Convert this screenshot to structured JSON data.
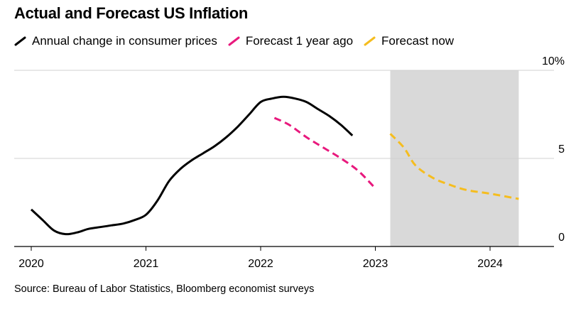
{
  "chart_data": {
    "type": "line",
    "title": "Actual and Forecast US Inflation",
    "source": "Source: Bureau of Labor Statistics, Bloomberg economist surveys",
    "ylim": [
      0,
      10
    ],
    "y_ticks": [
      {
        "value": 0,
        "label": "0"
      },
      {
        "value": 5,
        "label": "5"
      },
      {
        "value": 10,
        "label": "10%"
      }
    ],
    "xlim": [
      2020.0,
      2024.55
    ],
    "x_ticks": [
      {
        "value": 2020,
        "label": "2020"
      },
      {
        "value": 2021,
        "label": "2021"
      },
      {
        "value": 2022,
        "label": "2022"
      },
      {
        "value": 2023,
        "label": "2023"
      },
      {
        "value": 2024,
        "label": "2024"
      }
    ],
    "shaded_region": {
      "x_start": 2023.13,
      "x_end": 2024.25,
      "color": "#d9d9d9"
    },
    "grid": "horizontal",
    "legend_position": "top-left",
    "series": [
      {
        "name": "Annual change in consumer prices",
        "color": "#000000",
        "dash": false,
        "points": [
          [
            2020.0,
            2.1
          ],
          [
            2020.1,
            1.5
          ],
          [
            2020.2,
            0.9
          ],
          [
            2020.3,
            0.7
          ],
          [
            2020.4,
            0.8
          ],
          [
            2020.5,
            1.0
          ],
          [
            2020.6,
            1.1
          ],
          [
            2020.7,
            1.2
          ],
          [
            2020.8,
            1.3
          ],
          [
            2020.9,
            1.5
          ],
          [
            2021.0,
            1.8
          ],
          [
            2021.1,
            2.6
          ],
          [
            2021.2,
            3.7
          ],
          [
            2021.3,
            4.4
          ],
          [
            2021.4,
            4.9
          ],
          [
            2021.5,
            5.3
          ],
          [
            2021.6,
            5.7
          ],
          [
            2021.7,
            6.2
          ],
          [
            2021.8,
            6.8
          ],
          [
            2021.9,
            7.5
          ],
          [
            2022.0,
            8.2
          ],
          [
            2022.1,
            8.4
          ],
          [
            2022.2,
            8.5
          ],
          [
            2022.3,
            8.4
          ],
          [
            2022.4,
            8.2
          ],
          [
            2022.5,
            7.8
          ],
          [
            2022.6,
            7.4
          ],
          [
            2022.7,
            6.9
          ],
          [
            2022.8,
            6.3
          ]
        ]
      },
      {
        "name": "Forecast 1 year ago",
        "color": "#e8197d",
        "dash": true,
        "points": [
          [
            2022.12,
            7.3
          ],
          [
            2022.25,
            6.9
          ],
          [
            2022.4,
            6.2
          ],
          [
            2022.55,
            5.6
          ],
          [
            2022.7,
            5.0
          ],
          [
            2022.85,
            4.3
          ],
          [
            2023.0,
            3.3
          ]
        ]
      },
      {
        "name": "Forecast now",
        "color": "#f5bd1f",
        "dash": true,
        "points": [
          [
            2023.13,
            6.4
          ],
          [
            2023.25,
            5.6
          ],
          [
            2023.35,
            4.6
          ],
          [
            2023.5,
            3.9
          ],
          [
            2023.65,
            3.5
          ],
          [
            2023.8,
            3.2
          ],
          [
            2024.0,
            3.0
          ],
          [
            2024.25,
            2.7
          ]
        ]
      }
    ]
  }
}
